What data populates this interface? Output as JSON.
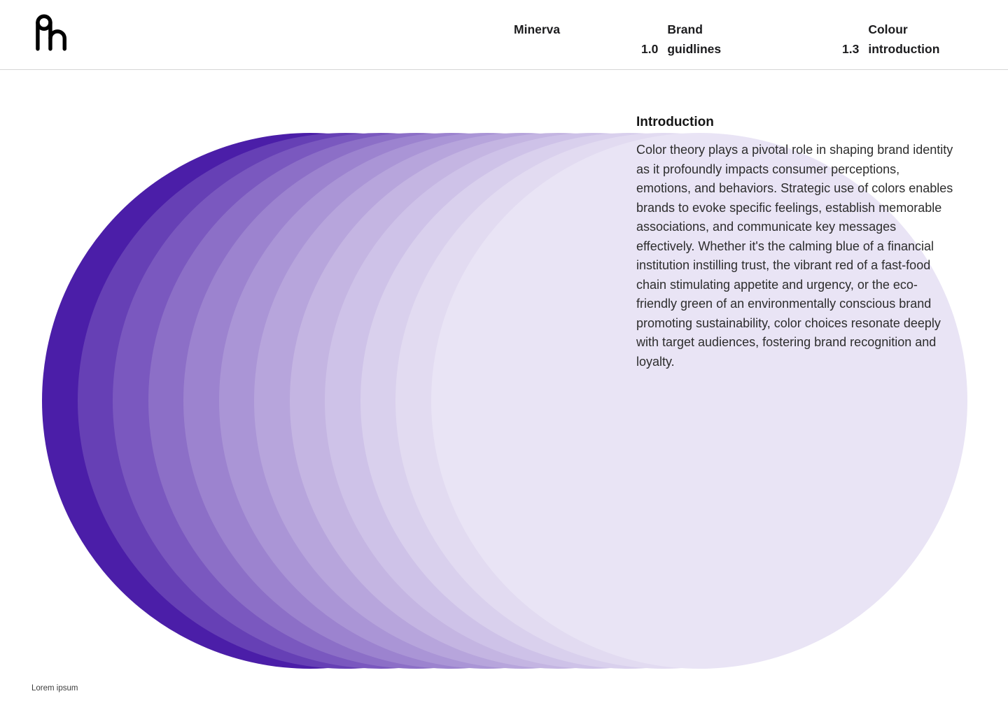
{
  "header": {
    "logo": "minerva-logo",
    "nav": [
      {
        "number": "",
        "label": "Minerva"
      },
      {
        "number": "1.0",
        "label": "Brand\nguidlines"
      },
      {
        "number": "1.3",
        "label": "Colour\nintroduction"
      }
    ]
  },
  "content": {
    "heading": "Introduction",
    "paragraph": "Color theory plays a pivotal role in shaping brand identity as it profoundly impacts consumer perceptions, emotions, and behaviors. Strategic use of colors enables brands to evoke specific feelings, establish memorable associations, and communicate key messages effectively. Whether it's the calming blue of a financial institution instilling trust, the vibrant red of a fast-food chain stimulating appetite and urgency, or the eco-friendly green of an environmentally conscious brand promoting sustainability, color choices resonate deeply with target audiences, fostering brand recognition and loyalty."
  },
  "graphic": {
    "type": "overlapping-circles",
    "description": "horizontal sequence of overlapping circles fading from deep violet on the left to pale lavender on the right",
    "base_color": "#4B1EA8",
    "lightest_color": "#E9E4F5",
    "circle_colors": [
      "#4B1EA8",
      "#6640B5",
      "#7A58BF",
      "#8C6FC7",
      "#9C83CF",
      "#AA95D6",
      "#B7A5DC",
      "#C4B5E2",
      "#CEC2E8",
      "#D9D0ED",
      "#E2DBF1",
      "#E9E4F5"
    ]
  },
  "footer": {
    "note": "Lorem ipsum"
  }
}
